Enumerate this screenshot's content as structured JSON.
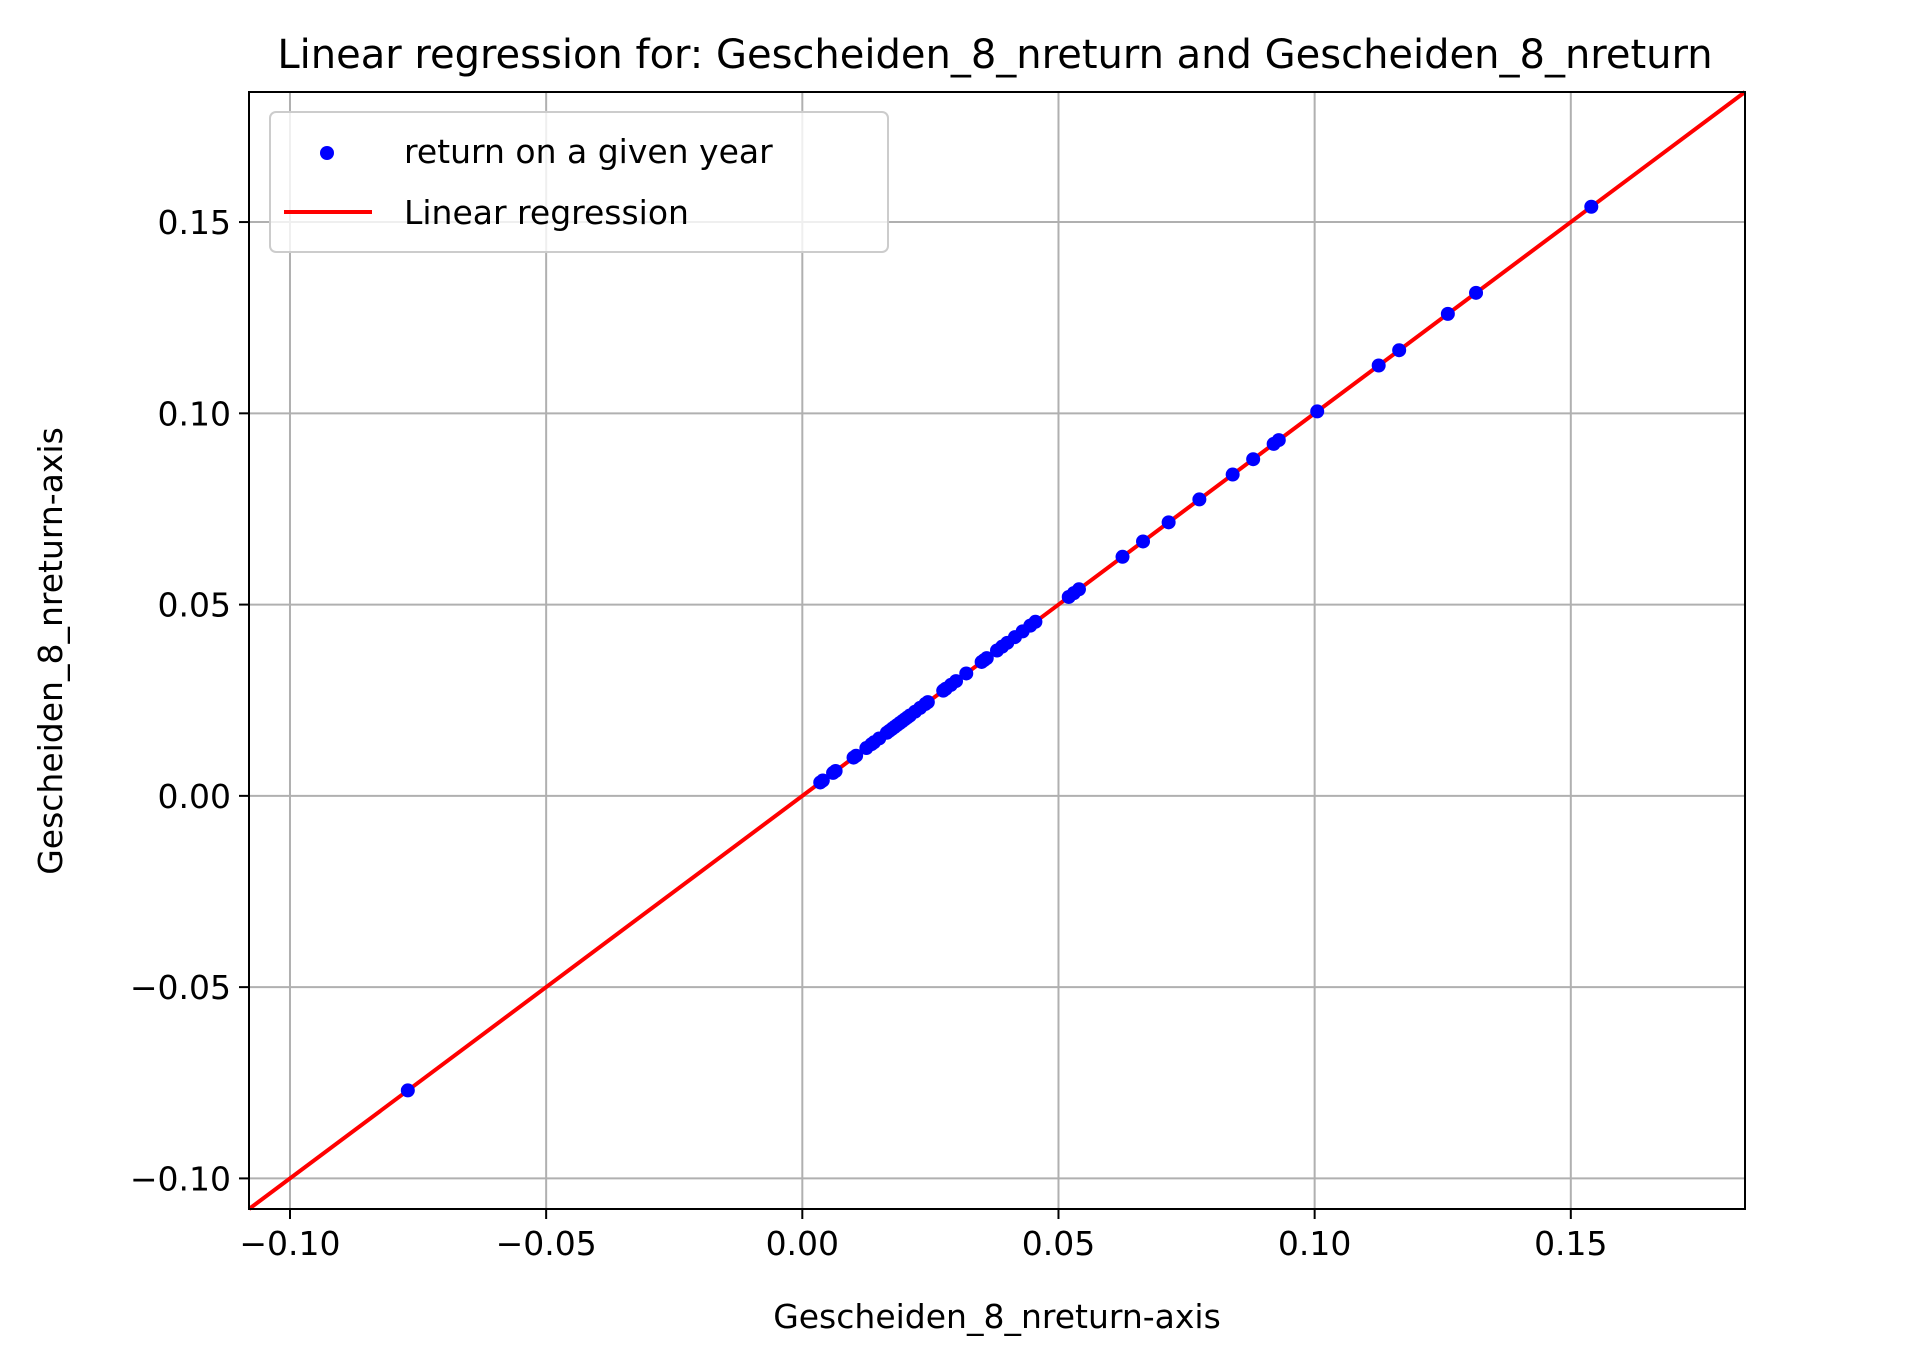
{
  "chart_data": {
    "type": "scatter",
    "title": "Linear regression for: Gescheiden_8_nreturn and Gescheiden_8_nreturn",
    "xlabel": "Gescheiden_8_nreturn-axis",
    "ylabel": "Gescheiden_8_nreturn-axis",
    "xlim": [
      -0.108,
      0.184
    ],
    "ylim": [
      -0.108,
      0.184
    ],
    "xticks": [
      -0.1,
      -0.05,
      0.0,
      0.05,
      0.1,
      0.15
    ],
    "yticks": [
      -0.1,
      -0.05,
      0.0,
      0.05,
      0.1,
      0.15
    ],
    "xtick_labels": [
      "−0.10",
      "−0.05",
      "0.00",
      "0.05",
      "0.10",
      "0.15"
    ],
    "ytick_labels": [
      "−0.10",
      "−0.05",
      "0.00",
      "0.05",
      "0.10",
      "0.15"
    ],
    "grid": true,
    "legend_position": "top-left",
    "series": [
      {
        "name": "return on a given year",
        "kind": "scatter",
        "color": "#0000ff",
        "x": [
          -0.077,
          0.0035,
          0.004,
          0.006,
          0.0065,
          0.01,
          0.0105,
          0.0125,
          0.0135,
          0.014,
          0.015,
          0.0165,
          0.017,
          0.0175,
          0.018,
          0.0185,
          0.019,
          0.0195,
          0.02,
          0.0205,
          0.021,
          0.022,
          0.023,
          0.024,
          0.0245,
          0.0275,
          0.028,
          0.029,
          0.03,
          0.032,
          0.035,
          0.0355,
          0.036,
          0.038,
          0.039,
          0.04,
          0.0415,
          0.043,
          0.0445,
          0.0455,
          0.052,
          0.053,
          0.054,
          0.0625,
          0.0665,
          0.0715,
          0.0775,
          0.084,
          0.088,
          0.092,
          0.093,
          0.1005,
          0.1125,
          0.1165,
          0.126,
          0.1315,
          0.154
        ],
        "y": [
          -0.077,
          0.0035,
          0.004,
          0.006,
          0.0065,
          0.01,
          0.0105,
          0.0125,
          0.0135,
          0.014,
          0.015,
          0.0165,
          0.017,
          0.0175,
          0.018,
          0.0185,
          0.019,
          0.0195,
          0.02,
          0.0205,
          0.021,
          0.022,
          0.023,
          0.024,
          0.0245,
          0.0275,
          0.028,
          0.029,
          0.03,
          0.032,
          0.035,
          0.0355,
          0.036,
          0.038,
          0.039,
          0.04,
          0.0415,
          0.043,
          0.0445,
          0.0455,
          0.052,
          0.053,
          0.054,
          0.0625,
          0.0665,
          0.0715,
          0.0775,
          0.084,
          0.088,
          0.092,
          0.093,
          0.1005,
          0.1125,
          0.1165,
          0.126,
          0.1315,
          0.154
        ]
      },
      {
        "name": "Linear regression",
        "kind": "line",
        "color": "#ff0000",
        "slope": 1.0,
        "intercept": 0.0,
        "x": [
          -0.108,
          0.184
        ],
        "y": [
          -0.108,
          0.184
        ]
      }
    ]
  }
}
